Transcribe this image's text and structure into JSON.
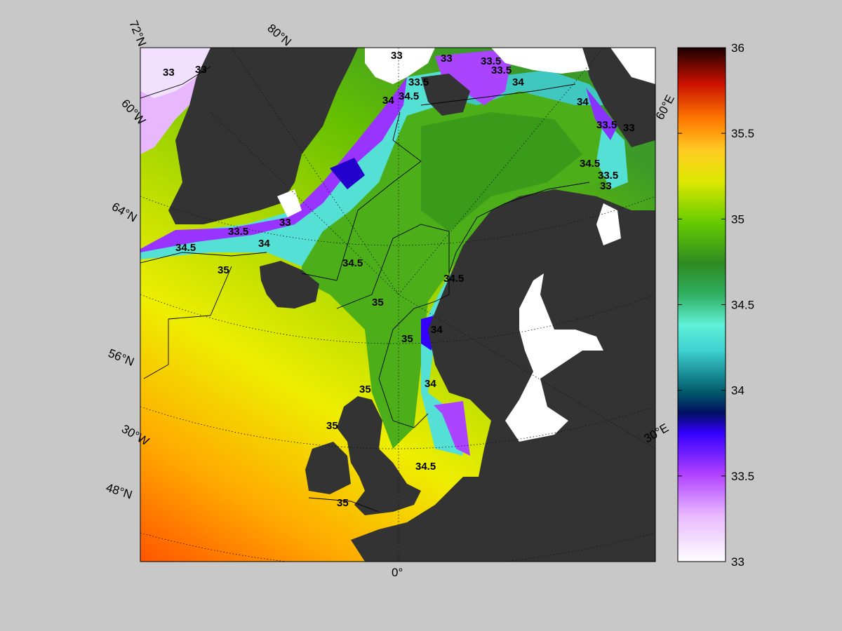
{
  "map": {
    "graticule_labels": [
      {
        "id": "lat-72n",
        "text": "72°N"
      },
      {
        "id": "lat-80n",
        "text": "80°N"
      },
      {
        "id": "lon-60w",
        "text": "60°W"
      },
      {
        "id": "lat-64n",
        "text": "64°N"
      },
      {
        "id": "lat-56n",
        "text": "56°N"
      },
      {
        "id": "lon-30w",
        "text": "30°W"
      },
      {
        "id": "lat-48n",
        "text": "48°N"
      },
      {
        "id": "lon-0",
        "text": "0°"
      },
      {
        "id": "lon-30e",
        "text": "30°E"
      },
      {
        "id": "lon-60e",
        "text": "60°E"
      }
    ],
    "contour_labels": [
      "33",
      "33",
      "33",
      "33",
      "33.5",
      "34",
      "34.5",
      "33.5",
      "34",
      "33.5",
      "34",
      "33.5",
      "33",
      "34.5",
      "33.5",
      "33",
      "33.5",
      "34.5",
      "34",
      "33",
      "35",
      "34.5",
      "34.5",
      "35",
      "35",
      "34",
      "35",
      "34",
      "35",
      "34.5",
      "35"
    ],
    "colors": {
      "land": "#333333",
      "ice": "#ffffff",
      "background": "#c8c8c8"
    }
  },
  "colorbar": {
    "min": 33,
    "max": 36,
    "ticks": [
      "36",
      "35.5",
      "35",
      "34.5",
      "34",
      "33.5",
      "33"
    ],
    "colors": [
      "#ffffff",
      "#cc66ff",
      "#3300ff",
      "#005566",
      "#44dddd",
      "#2e8b2e",
      "#66cc00",
      "#ccdd00",
      "#ffcc00",
      "#ff6600",
      "#cc0000",
      "#330000"
    ]
  }
}
